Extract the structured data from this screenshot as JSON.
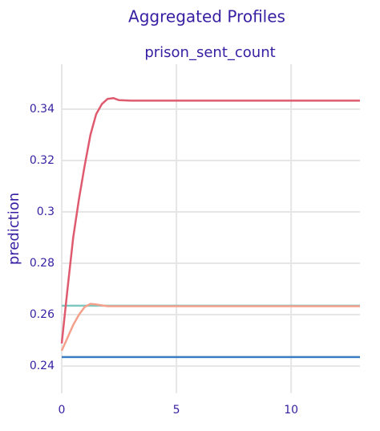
{
  "chart_data": {
    "type": "line",
    "title": "Aggregated Profiles",
    "subtitle": "prison_sent_count",
    "y_label": "prediction",
    "x": [
      0,
      0.25,
      0.5,
      0.75,
      1,
      1.25,
      1.5,
      1.75,
      2,
      2.25,
      2.5,
      3,
      13
    ],
    "series": [
      {
        "color": "#7ec8c0",
        "values": [
          0.2635,
          0.2635,
          0.2635,
          0.2635,
          0.2635,
          0.2635,
          0.2635,
          0.2635,
          0.2635,
          0.2635,
          0.2635,
          0.2635,
          0.2635
        ]
      },
      {
        "color": "#3a7dc2",
        "values": [
          0.2435,
          0.2435,
          0.2435,
          0.2435,
          0.2435,
          0.2435,
          0.2435,
          0.2435,
          0.2435,
          0.2435,
          0.2435,
          0.2435,
          0.2435
        ]
      },
      {
        "color": "#f4a08a",
        "values": [
          0.246,
          0.251,
          0.256,
          0.26,
          0.263,
          0.2642,
          0.264,
          0.2636,
          0.2633,
          0.2633,
          0.2633,
          0.2633,
          0.2633
        ]
      },
      {
        "color": "#e05a6f",
        "values": [
          0.2488,
          0.27,
          0.29,
          0.305,
          0.318,
          0.33,
          0.338,
          0.342,
          0.344,
          0.3443,
          0.3435,
          0.3433,
          0.3433
        ]
      }
    ],
    "xlim": [
      0,
      13
    ],
    "xticks": [
      0,
      5,
      10
    ],
    "ylim": [
      0.2294,
      0.3575
    ],
    "yticks": [
      0.24,
      0.26,
      0.28,
      0.3,
      0.32,
      0.34
    ],
    "grid": true
  }
}
